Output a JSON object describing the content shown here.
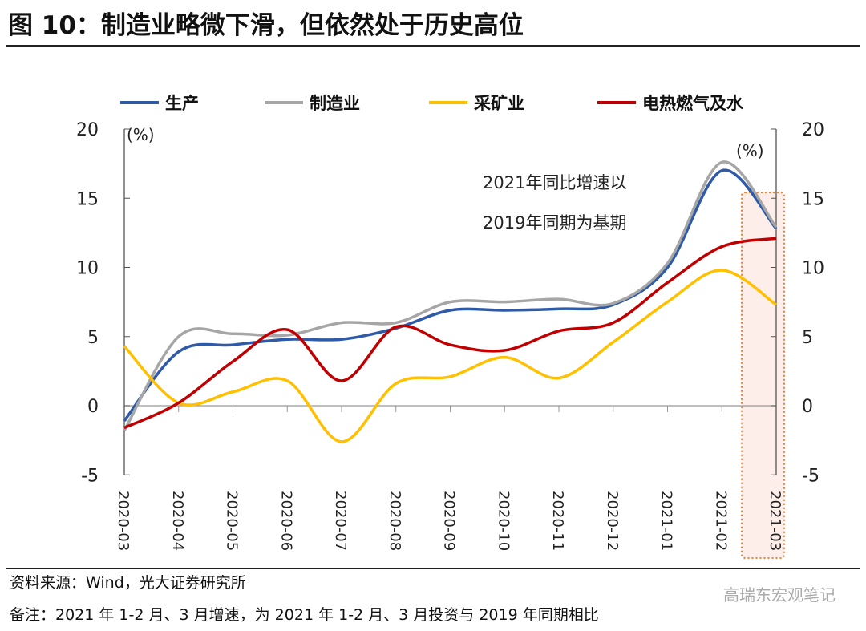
{
  "title": "图 10：制造业略微下滑，但依然处于历史高位",
  "source": "资料来源：Wind，光大证券研究所",
  "note": "备注：2021 年 1-2 月、3 月增速，为 2021 年 1-2 月、3 月投资与 2019 年同期相比",
  "watermark": "高瑞东宏观笔记",
  "chart_data": {
    "type": "line",
    "title": "图 10：制造业略微下滑，但依然处于历史高位",
    "ylabel_left": "(%)",
    "ylabel_right": "(%)",
    "ylim": [
      -5,
      20
    ],
    "yticks": [
      -5,
      0,
      5,
      10,
      15,
      20
    ],
    "annotation": [
      "2021年同比增速以",
      "2019年同期为基期"
    ],
    "legend_position": "top",
    "categories": [
      "2020-03",
      "2020-04",
      "2020-05",
      "2020-06",
      "2020-07",
      "2020-08",
      "2020-09",
      "2020-10",
      "2020-11",
      "2020-12",
      "2021-01",
      "2021-02",
      "2021-03"
    ],
    "series": [
      {
        "name": "生产",
        "color": "#2e5aa8",
        "values": [
          -1.1,
          3.9,
          4.4,
          4.8,
          4.8,
          5.6,
          6.9,
          6.9,
          7.0,
          7.3,
          10.0,
          17.0,
          12.8
        ]
      },
      {
        "name": "制造业",
        "color": "#a6a6a6",
        "values": [
          -1.8,
          5.0,
          5.2,
          5.1,
          6.0,
          6.0,
          7.5,
          7.5,
          7.7,
          7.4,
          10.3,
          17.6,
          12.9
        ]
      },
      {
        "name": "采矿业",
        "color": "#ffc000",
        "values": [
          4.3,
          0.2,
          1.0,
          1.8,
          -2.6,
          1.6,
          2.1,
          3.5,
          2.0,
          4.6,
          7.5,
          9.8,
          7.3
        ]
      },
      {
        "name": "电热燃气及水",
        "color": "#c00000",
        "values": [
          -1.6,
          0.2,
          3.2,
          5.5,
          1.8,
          5.7,
          4.4,
          4.0,
          5.4,
          6.0,
          8.9,
          11.5,
          12.1
        ]
      }
    ],
    "highlight": "2021-03"
  }
}
